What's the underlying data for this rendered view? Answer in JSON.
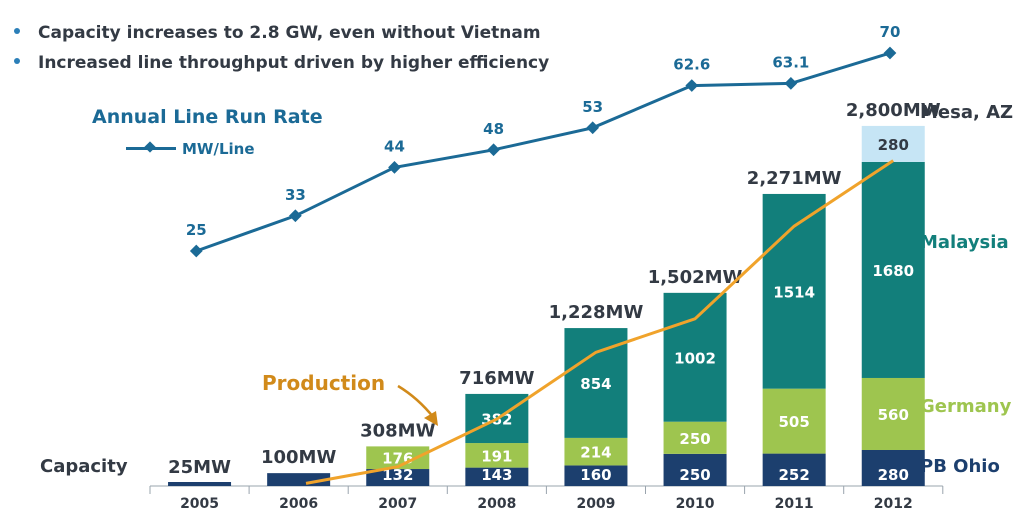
{
  "bullets": [
    "Capacity increases to 2.8 GW, even without Vietnam",
    "Increased line throughput driven by higher efficiency"
  ],
  "colors": {
    "pb_ohio": "#1c3f6e",
    "germany": "#9ec54f",
    "malaysia": "#127f7b",
    "mesa": "#c6e5f5",
    "run_rate": "#1b6a96",
    "production": "#f0a32b"
  },
  "labels": {
    "run_rate_title": "Annual Line Run Rate",
    "run_rate_legend": "MW/Line",
    "capacity": "Capacity",
    "production": "Production"
  },
  "chart_data": {
    "type": "bar",
    "stacked": true,
    "categories": [
      "2005",
      "2006",
      "2007",
      "2008",
      "2009",
      "2010",
      "2011",
      "2012"
    ],
    "series": [
      {
        "name": "PB Ohio",
        "values": [
          25,
          100,
          132,
          143,
          160,
          250,
          252,
          280
        ]
      },
      {
        "name": "Germany",
        "values": [
          0,
          0,
          176,
          191,
          214,
          250,
          505,
          560
        ]
      },
      {
        "name": "Malaysia",
        "values": [
          0,
          0,
          0,
          382,
          854,
          1002,
          1514,
          1680
        ]
      },
      {
        "name": "Mesa, AZ",
        "values": [
          0,
          0,
          0,
          0,
          0,
          0,
          0,
          280
        ]
      }
    ],
    "totals": [
      "25MW",
      "100MW",
      "308MW",
      "716MW",
      "1,228MW",
      "1,502MW",
      "2,271MW",
      "2,800MW"
    ],
    "segment_labels": [
      [
        "",
        "",
        "132",
        "143",
        "160",
        "250",
        "252",
        "280"
      ],
      [
        "",
        "",
        "176",
        "191",
        "214",
        "250",
        "505",
        "560"
      ],
      [
        "",
        "",
        "",
        "382",
        "854",
        "1002",
        "1514",
        "1680"
      ],
      [
        "",
        "",
        "",
        "",
        "",
        "",
        "",
        "280"
      ]
    ],
    "ylim": [
      0,
      2800
    ],
    "run_rate": {
      "name": "MW/Line",
      "values": [
        25,
        33,
        44,
        48,
        53,
        62.6,
        63.1,
        70
      ],
      "labels": [
        "25",
        "33",
        "44",
        "48",
        "53",
        "62.6",
        "63.1",
        "70"
      ],
      "ylim": [
        25,
        70
      ]
    },
    "production": {
      "name": "Production",
      "values": [
        null,
        20,
        150,
        520,
        1040,
        1300,
        2020,
        2530
      ]
    },
    "grid": false,
    "legend": "right"
  }
}
